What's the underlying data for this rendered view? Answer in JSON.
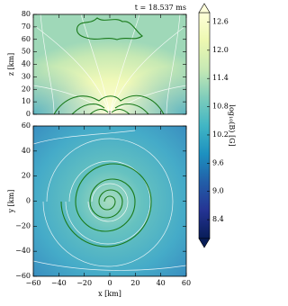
{
  "chart_data": [
    {
      "type": "heatmap",
      "title": "t = 18.537 ms",
      "ylabel": "z [km]",
      "xlim": [
        -60,
        60
      ],
      "ylim": [
        0,
        80
      ],
      "xticks": [
        -60,
        -40,
        -20,
        0,
        20,
        40,
        60
      ],
      "yticks": [
        0,
        10,
        20,
        30,
        40,
        50,
        60,
        70,
        80
      ]
    },
    {
      "type": "heatmap",
      "xlabel": "x [km]",
      "ylabel": "y [km]",
      "xlim": [
        -60,
        60
      ],
      "ylim": [
        -60,
        60
      ],
      "xticks": [
        {
          "value": -60,
          "label": "−60"
        },
        {
          "value": -40,
          "label": "−40"
        },
        {
          "value": -20,
          "label": "−20"
        },
        0,
        20,
        40,
        60
      ],
      "yticks": [
        {
          "value": -60,
          "label": "−60"
        },
        {
          "value": -40,
          "label": "−40"
        },
        {
          "value": -20,
          "label": "−20"
        },
        0,
        20,
        40,
        60
      ]
    },
    {
      "type": "colorbar",
      "label": "log₁₀(B) [G]",
      "ylim": [
        8.0,
        12.8
      ],
      "yticks": [
        8.4,
        {
          "value": 9.0,
          "label": "9.0"
        },
        9.6,
        10.2,
        10.8,
        11.4,
        {
          "value": 12.0,
          "label": "12.0"
        },
        12.6
      ],
      "colors": [
        "#081d58",
        "#253494",
        "#225ea8",
        "#1d91c0",
        "#41b6c4",
        "#7fcdbb",
        "#c7e9b4",
        "#edf8b1",
        "#ffffd9"
      ]
    }
  ]
}
